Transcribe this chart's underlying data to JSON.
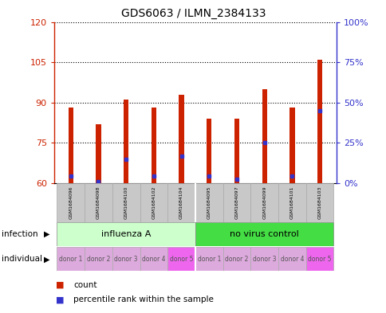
{
  "title": "GDS6063 / ILMN_2384133",
  "samples": [
    "GSM1684096",
    "GSM1684098",
    "GSM1684100",
    "GSM1684102",
    "GSM1684104",
    "GSM1684095",
    "GSM1684097",
    "GSM1684099",
    "GSM1684101",
    "GSM1684103"
  ],
  "bar_tops": [
    88,
    82,
    91,
    88,
    93,
    84,
    84,
    95,
    88,
    106
  ],
  "bar_base": 60,
  "blue_values": [
    62.5,
    60.5,
    69,
    62.5,
    70,
    62.5,
    61.5,
    75,
    62.5,
    87
  ],
  "bar_color": "#cc2200",
  "blue_color": "#3333cc",
  "ylim_left": [
    60,
    120
  ],
  "ylim_right": [
    0,
    100
  ],
  "yticks_left": [
    60,
    75,
    90,
    105,
    120
  ],
  "yticks_right": [
    0,
    25,
    50,
    75,
    100
  ],
  "ytick_labels_right": [
    "0%",
    "25%",
    "50%",
    "75%",
    "100%"
  ],
  "infection_groups": [
    {
      "label": "influenza A",
      "start": 0,
      "end": 5,
      "color": "#ccffcc"
    },
    {
      "label": "no virus control",
      "start": 5,
      "end": 10,
      "color": "#44dd44"
    }
  ],
  "individuals": [
    "donor 1",
    "donor 2",
    "donor 3",
    "donor 4",
    "donor 5",
    "donor 1",
    "donor 2",
    "donor 3",
    "donor 4",
    "donor 5"
  ],
  "individual_colors": [
    "#ddaadd",
    "#ddaadd",
    "#ddaadd",
    "#ddaadd",
    "#ee66ee",
    "#ddaadd",
    "#ddaadd",
    "#ddaadd",
    "#ddaadd",
    "#ee66ee"
  ],
  "background_color": "#ffffff",
  "plot_bg": "#ffffff",
  "bar_width": 0.18,
  "legend_count_color": "#cc2200",
  "legend_pct_color": "#3333cc"
}
